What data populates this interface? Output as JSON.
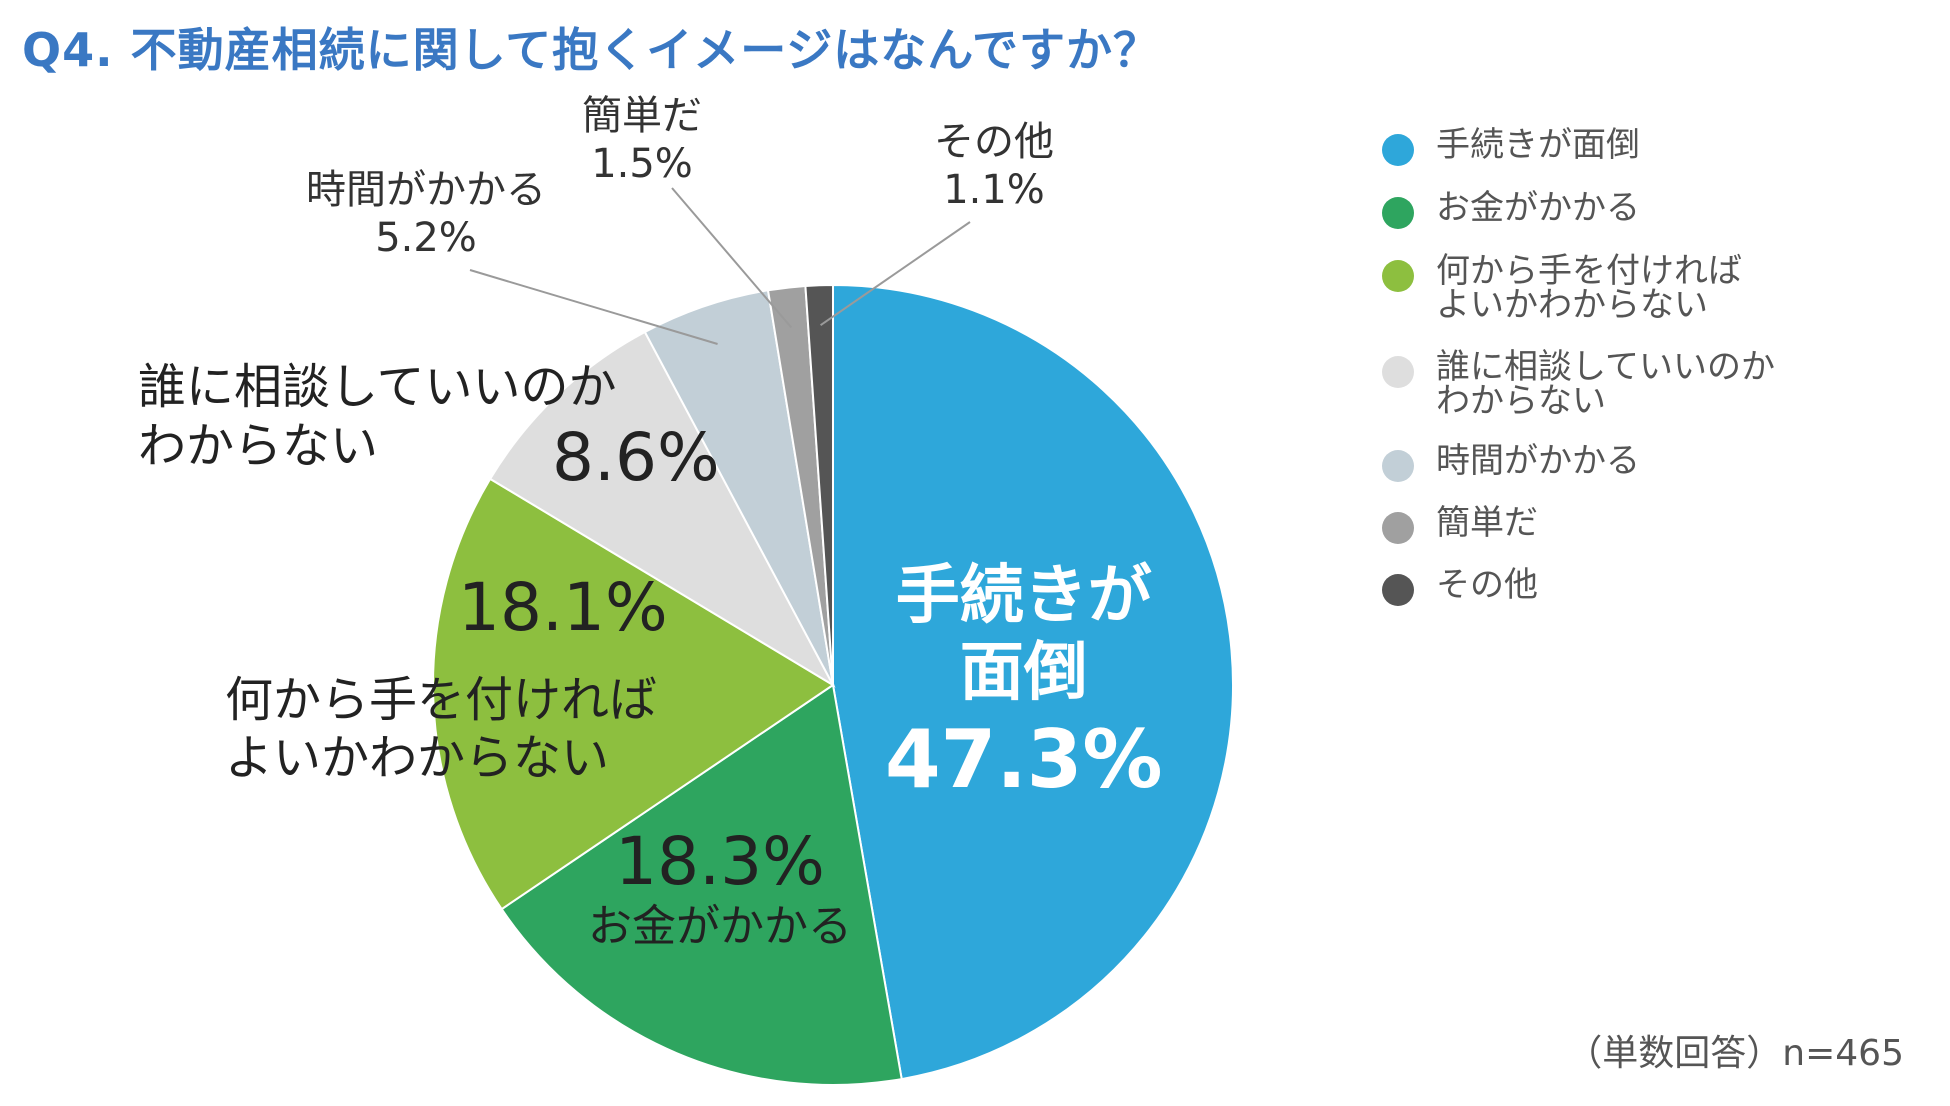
{
  "title": "Q4. 不動産相続に関して抱くイメージはなんですか？",
  "footnote": "（単数回答）n=465",
  "chart_data": {
    "type": "pie",
    "title": "Q4. 不動産相続に関して抱くイメージはなんですか？",
    "categories": [
      "手続きが面倒",
      "お金がかかる",
      "何から手を付ければよいかわからない",
      "誰に相談していいのかわからない",
      "時間がかかる",
      "簡単だ",
      "その他"
    ],
    "values": [
      47.3,
      18.3,
      18.1,
      8.6,
      5.2,
      1.5,
      1.1
    ],
    "colors": [
      "#2ea7da",
      "#2ea55f",
      "#8dbf3f",
      "#dedede",
      "#c2cfd7",
      "#a0a0a0",
      "#555555"
    ],
    "start": "12 o'clock",
    "direction": "clockwise",
    "legend_position": "right"
  },
  "slice_labels": {
    "s0": {
      "name_line1": "手続きが",
      "name_line2": "面倒",
      "pct": "47.3%"
    },
    "s1": {
      "name": "お金がかかる",
      "pct": "18.3%"
    },
    "s2": {
      "name_line1": "何から手を付ければ",
      "name_line2": "よいかわからない",
      "pct": "18.1%"
    },
    "s3": {
      "name_line1": "誰に相談していいのか",
      "name_line2": "わからない",
      "pct": "8.6%"
    },
    "s4": {
      "name": "時間がかかる",
      "pct": "5.2%"
    },
    "s5": {
      "name": "簡単だ",
      "pct": "1.5%"
    },
    "s6": {
      "name": "その他",
      "pct": "1.1%"
    }
  },
  "legend": [
    {
      "line1": "手続きが面倒",
      "line2": ""
    },
    {
      "line1": "お金がかかる",
      "line2": ""
    },
    {
      "line1": "何から手を付ければ",
      "line2": "よいかわからない"
    },
    {
      "line1": "誰に相談していいのか",
      "line2": "わからない"
    },
    {
      "line1": "時間がかかる",
      "line2": ""
    },
    {
      "line1": "簡単だ",
      "line2": ""
    },
    {
      "line1": "その他",
      "line2": ""
    }
  ]
}
